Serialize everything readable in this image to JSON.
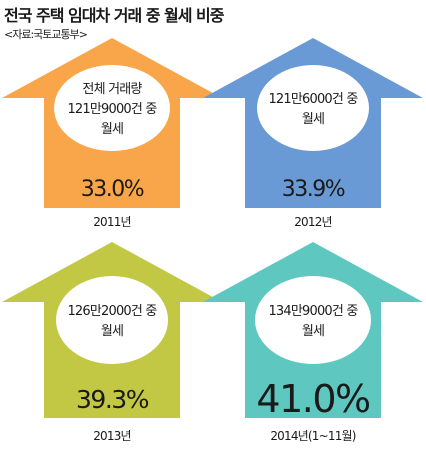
{
  "header": {
    "title": "전국 주택 임대차 거래 중 월세 비중",
    "source": "<자료:국토교통부>"
  },
  "colors": {
    "arrow_2011": "#f9a64a",
    "arrow_2012": "#6a9ad6",
    "arrow_2013": "#c2c744",
    "arrow_2014": "#5ec8c0",
    "ellipse": "#ffffff"
  },
  "chart_data": {
    "type": "infographic",
    "unit": "%",
    "series": [
      {
        "name": "월세 비중",
        "values": [
          33.0,
          33.9,
          39.3,
          41.0
        ]
      }
    ],
    "items": [
      {
        "year": "2011년",
        "value": 33.0,
        "value_label": "33.0%",
        "lines": [
          "전체 거래량",
          "121만9000건 중",
          "월세"
        ]
      },
      {
        "year": "2012년",
        "value": 33.9,
        "value_label": "33.9%",
        "lines": [
          "121만6000건 중",
          "월세"
        ]
      },
      {
        "year": "2013년",
        "value": 39.3,
        "value_label": "39.3%",
        "lines": [
          "126만2000건 중",
          "월세"
        ]
      },
      {
        "year": "2014년(1~11월)",
        "value": 41.0,
        "value_label": "41.0%",
        "lines": [
          "134만9000건 중",
          "월세"
        ]
      }
    ]
  }
}
